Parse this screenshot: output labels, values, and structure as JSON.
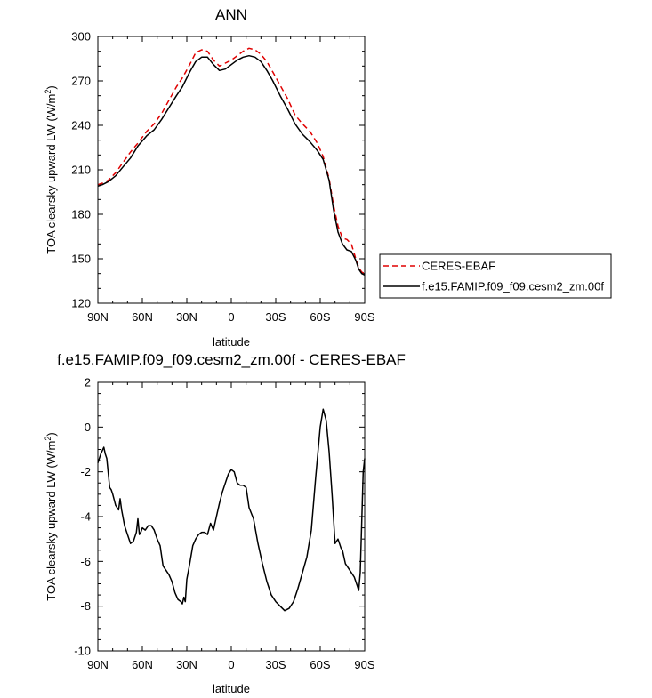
{
  "chart_data": [
    {
      "type": "line",
      "title": "ANN",
      "xlabel": "latitude",
      "ylabel": "TOA clearsky upward LW (W/m²)",
      "xlim": [
        90,
        -90
      ],
      "ylim": [
        120,
        300
      ],
      "x_ticks": [
        90,
        60,
        30,
        0,
        -30,
        -60,
        -90
      ],
      "x_tick_labels": [
        "90N",
        "60N",
        "30N",
        "0",
        "30S",
        "60S",
        "90S"
      ],
      "y_ticks": [
        120,
        150,
        180,
        210,
        240,
        270,
        300
      ],
      "y_tick_labels": [
        "120",
        "150",
        "180",
        "210",
        "240",
        "270",
        "300"
      ],
      "legend_position": "right",
      "series": [
        {
          "name": "CERES-EBAF",
          "color": "#e00000",
          "dash": "dashed",
          "x": [
            90,
            87,
            83,
            78,
            73,
            68,
            63,
            57,
            52,
            47,
            42,
            37,
            33,
            28,
            24,
            20,
            16,
            12,
            8,
            4,
            0,
            -4,
            -8,
            -12,
            -16,
            -20,
            -24,
            -28,
            -33,
            -38,
            -43,
            -48,
            -53,
            -58,
            -62,
            -66,
            -69,
            -72,
            -75,
            -78,
            -81,
            -84,
            -86,
            -88,
            -90
          ],
          "y": [
            200,
            201,
            203,
            208,
            215,
            222,
            228,
            236,
            241,
            248,
            257,
            266,
            272,
            281,
            289,
            291,
            290,
            284,
            280,
            282,
            284,
            287,
            290,
            292,
            291,
            288,
            283,
            276,
            267,
            258,
            247,
            241,
            236,
            228,
            219,
            204,
            186,
            172,
            164,
            163,
            160,
            150,
            144,
            141,
            140
          ]
        },
        {
          "name": "f.e15.FAMIP.f09_f09.cesm2_zm.00f",
          "color": "#000000",
          "dash": "solid",
          "x": [
            90,
            87,
            83,
            78,
            73,
            68,
            63,
            57,
            52,
            47,
            42,
            37,
            33,
            28,
            24,
            20,
            16,
            12,
            8,
            4,
            0,
            -4,
            -8,
            -12,
            -16,
            -20,
            -24,
            -28,
            -33,
            -38,
            -43,
            -48,
            -53,
            -58,
            -62,
            -66,
            -69,
            -72,
            -75,
            -78,
            -81,
            -84,
            -86,
            -88,
            -90
          ],
          "y": [
            199,
            200,
            202,
            206,
            212,
            218,
            226,
            233,
            237,
            244,
            252,
            260,
            266,
            276,
            283,
            286,
            286,
            281,
            277,
            278,
            281,
            284,
            286,
            287,
            286,
            283,
            277,
            270,
            260,
            251,
            241,
            234,
            229,
            223,
            217,
            203,
            183,
            168,
            160,
            156,
            155,
            149,
            143,
            140,
            139
          ]
        }
      ]
    },
    {
      "type": "line",
      "title": "f.e15.FAMIP.f09_f09.cesm2_zm.00f - CERES-EBAF",
      "xlabel": "latitude",
      "ylabel": "TOA clearsky upward LW (W/m²)",
      "xlim": [
        90,
        -90
      ],
      "ylim": [
        -10,
        2
      ],
      "x_ticks": [
        90,
        60,
        30,
        0,
        -30,
        -60,
        -90
      ],
      "x_tick_labels": [
        "90N",
        "60N",
        "30N",
        "0",
        "30S",
        "60S",
        "90S"
      ],
      "y_ticks": [
        -10,
        -8,
        -6,
        -4,
        -2,
        0,
        2
      ],
      "y_tick_labels": [
        "-10",
        "-8",
        "-6",
        "-4",
        "-2",
        "0",
        "2"
      ],
      "series": [
        {
          "color": "#000000",
          "dash": "solid",
          "x": [
            90,
            88,
            86,
            85,
            84,
            82,
            81,
            80,
            78,
            76,
            75,
            74,
            72,
            70,
            68,
            66,
            64,
            63,
            62,
            61,
            60,
            58,
            56,
            54,
            52,
            50,
            48,
            46,
            44,
            42,
            40,
            38,
            36,
            34,
            33,
            32,
            31,
            30,
            28,
            26,
            24,
            22,
            20,
            18,
            16,
            14,
            12,
            10,
            8,
            6,
            4,
            2,
            0,
            -2,
            -4,
            -6,
            -8,
            -10,
            -12,
            -15,
            -18,
            -21,
            -24,
            -27,
            -30,
            -33,
            -36,
            -39,
            -42,
            -45,
            -48,
            -51,
            -54,
            -57,
            -60,
            -62,
            -64,
            -66,
            -68,
            -70,
            -72,
            -74,
            -75,
            -77,
            -79,
            -81,
            -83,
            -85,
            -86,
            -87,
            -88,
            -89,
            -90
          ],
          "y": [
            -1.6,
            -1.2,
            -0.9,
            -1.2,
            -1.4,
            -2.7,
            -2.8,
            -3.0,
            -3.5,
            -3.7,
            -3.2,
            -3.7,
            -4.4,
            -4.8,
            -5.2,
            -5.1,
            -4.7,
            -4.1,
            -4.8,
            -4.7,
            -4.5,
            -4.6,
            -4.4,
            -4.4,
            -4.6,
            -5.0,
            -5.3,
            -6.2,
            -6.4,
            -6.6,
            -6.9,
            -7.4,
            -7.7,
            -7.8,
            -7.9,
            -7.6,
            -7.8,
            -6.8,
            -6.1,
            -5.3,
            -5.0,
            -4.8,
            -4.7,
            -4.7,
            -4.8,
            -4.3,
            -4.6,
            -4.0,
            -3.4,
            -2.9,
            -2.5,
            -2.1,
            -1.9,
            -2.0,
            -2.5,
            -2.6,
            -2.6,
            -2.7,
            -3.6,
            -4.1,
            -5.2,
            -6.1,
            -6.9,
            -7.5,
            -7.8,
            -8.0,
            -8.2,
            -8.1,
            -7.8,
            -7.2,
            -6.5,
            -5.8,
            -4.6,
            -2.2,
            0.0,
            0.8,
            0.3,
            -1.1,
            -3.0,
            -5.2,
            -5.0,
            -5.4,
            -5.5,
            -6.1,
            -6.3,
            -6.5,
            -6.7,
            -7.1,
            -7.3,
            -6.5,
            -4.2,
            -2.0,
            -1.4
          ]
        }
      ]
    }
  ]
}
